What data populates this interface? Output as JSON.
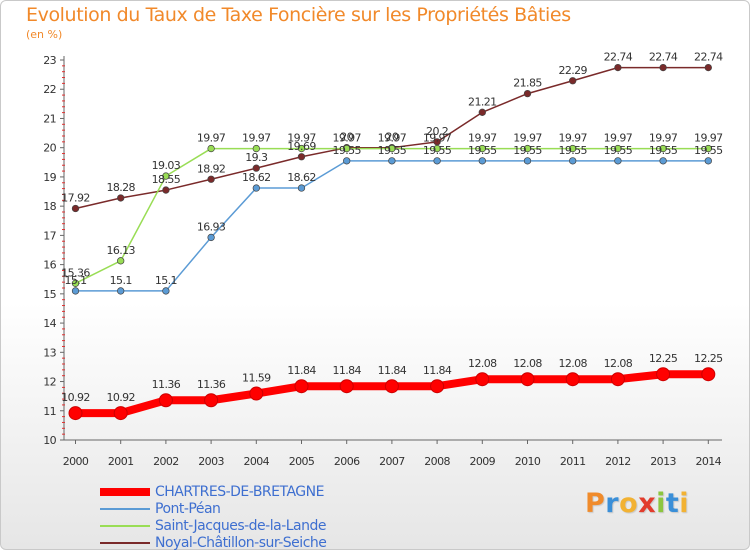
{
  "title": "Evolution du Taux de Taxe Foncière sur les Propriétés Bâties",
  "unit": "(en %)",
  "logo": {
    "text": "Proxiti",
    "letter_colors": [
      "#f08b2b",
      "#3a8fd8",
      "#f2b233",
      "#e23c2c",
      "#8cc63f",
      "#3a8fd8",
      "#f2b233"
    ]
  },
  "chart_data": {
    "type": "line",
    "title": "Evolution du Taux de Taxe Foncière sur les Propriétés Bâties",
    "ylabel": "(en %)",
    "xlabel": "",
    "ylim": [
      10,
      23
    ],
    "yticks": [
      "10",
      "11",
      "12",
      "13",
      "14",
      "15",
      "16",
      "17",
      "18",
      "19",
      "20",
      "21",
      "22",
      "23"
    ],
    "categories": [
      "2000",
      "2001",
      "2002",
      "2003",
      "2004",
      "2005",
      "2006",
      "2007",
      "2008",
      "2009",
      "2010",
      "2011",
      "2012",
      "2013",
      "2014"
    ],
    "series": [
      {
        "name": "CHARTRES-DE-BRETAGNE",
        "color": "#ff0000",
        "values": [
          10.92,
          10.92,
          11.36,
          11.36,
          11.59,
          11.84,
          11.84,
          11.84,
          11.84,
          12.08,
          12.08,
          12.08,
          12.08,
          12.25,
          12.25
        ],
        "labels": [
          "10.92",
          "10.92",
          "11.36",
          "11.36",
          "11.59",
          "11.84",
          "11.84",
          "11.84",
          "11.84",
          "12.08",
          "12.08",
          "12.08",
          "12.08",
          "12.25",
          "12.25"
        ]
      },
      {
        "name": "Pont-Péan",
        "color": "#5b9bd5",
        "values": [
          15.1,
          15.1,
          15.1,
          16.93,
          18.62,
          18.62,
          19.55,
          19.55,
          19.55,
          19.55,
          19.55,
          19.55,
          19.55,
          19.55,
          19.55
        ],
        "labels": [
          "15.1",
          "15.1",
          "15.1",
          "16.93",
          "18.62",
          "18.62",
          "19.55",
          "19.55",
          "19.55",
          "19.55",
          "19.55",
          "19.55",
          "19.55",
          "19.55",
          "19.55"
        ]
      },
      {
        "name": "Saint-Jacques-de-la-Lande",
        "color": "#99dd55",
        "values": [
          15.36,
          16.13,
          19.03,
          19.97,
          19.97,
          19.97,
          19.97,
          19.97,
          19.97,
          19.97,
          19.97,
          19.97,
          19.97,
          19.97,
          19.97
        ],
        "labels": [
          "15.36",
          "16.13",
          "19.03",
          "19.97",
          "19.97",
          "19.97",
          "19.97",
          "19.97",
          "19.97",
          "19.97",
          "19.97",
          "19.97",
          "19.97",
          "19.97",
          "19.97"
        ]
      },
      {
        "name": "Noyal-Châtillon-sur-Seiche",
        "color": "#7a2a2a",
        "values": [
          17.92,
          18.28,
          18.55,
          18.92,
          19.3,
          19.69,
          20.0,
          20.0,
          20.2,
          21.21,
          21.85,
          22.29,
          22.74,
          22.74,
          22.74
        ],
        "labels": [
          "17.92",
          "18.28",
          "18.55",
          "18.92",
          "19.3",
          "19.69",
          "20",
          "20",
          "20.2",
          "21.21",
          "21.85",
          "22.29",
          "22.74",
          "22.74",
          "22.74"
        ]
      }
    ],
    "legend": [
      "CHARTRES-DE-BRETAGNE",
      "Pont-Péan",
      "Saint-Jacques-de-la-Lande",
      "Noyal-Châtillon-sur-Seiche"
    ],
    "legend_position": "bottom-left",
    "grid": false
  }
}
